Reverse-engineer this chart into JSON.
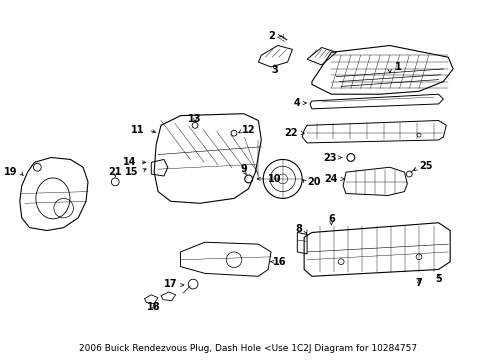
{
  "title": "2006 Buick Rendezvous Plug, Dash Hole <Use 1C2J Diagram for 10284757",
  "bg_color": "#ffffff",
  "fig_width": 4.89,
  "fig_height": 3.6,
  "dpi": 100,
  "title_fontsize": 6.5,
  "label_fontsize": 7,
  "lw": 0.7
}
